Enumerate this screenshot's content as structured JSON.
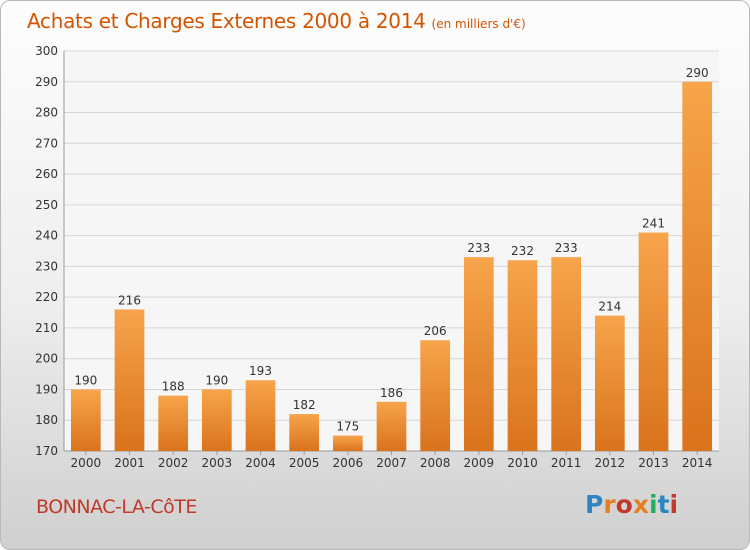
{
  "title": "Achats et Charges Externes 2000 à 2014",
  "unit": "(en milliers d'€)",
  "place": "BONNAC-LA-CôTE",
  "brand": {
    "text": "Proxiti",
    "colors": [
      "#2e86c1",
      "#e67e22",
      "#c0392b",
      "#e67e22",
      "#27ae60",
      "#2e86c1",
      "#c0392b"
    ]
  },
  "colors": {
    "bar_light": "#f7a44b",
    "bar_dark": "#d9731c",
    "grid": "#d5d5d5",
    "axis": "#9a9a9a"
  },
  "chart_data": {
    "type": "bar",
    "title": "Achats et Charges Externes 2000 à 2014",
    "subtitle": "(en milliers d'€)",
    "categories": [
      "2000",
      "2001",
      "2002",
      "2003",
      "2004",
      "2005",
      "2006",
      "2007",
      "2008",
      "2009",
      "2010",
      "2011",
      "2012",
      "2013",
      "2014"
    ],
    "values": [
      190,
      216,
      188,
      190,
      193,
      182,
      175,
      186,
      206,
      233,
      232,
      233,
      214,
      241,
      290
    ],
    "ylim": [
      170,
      300
    ],
    "yticks": [
      170,
      180,
      190,
      200,
      210,
      220,
      230,
      240,
      250,
      260,
      270,
      280,
      290,
      300
    ],
    "grid": true,
    "data_labels": true,
    "legend": "none"
  }
}
